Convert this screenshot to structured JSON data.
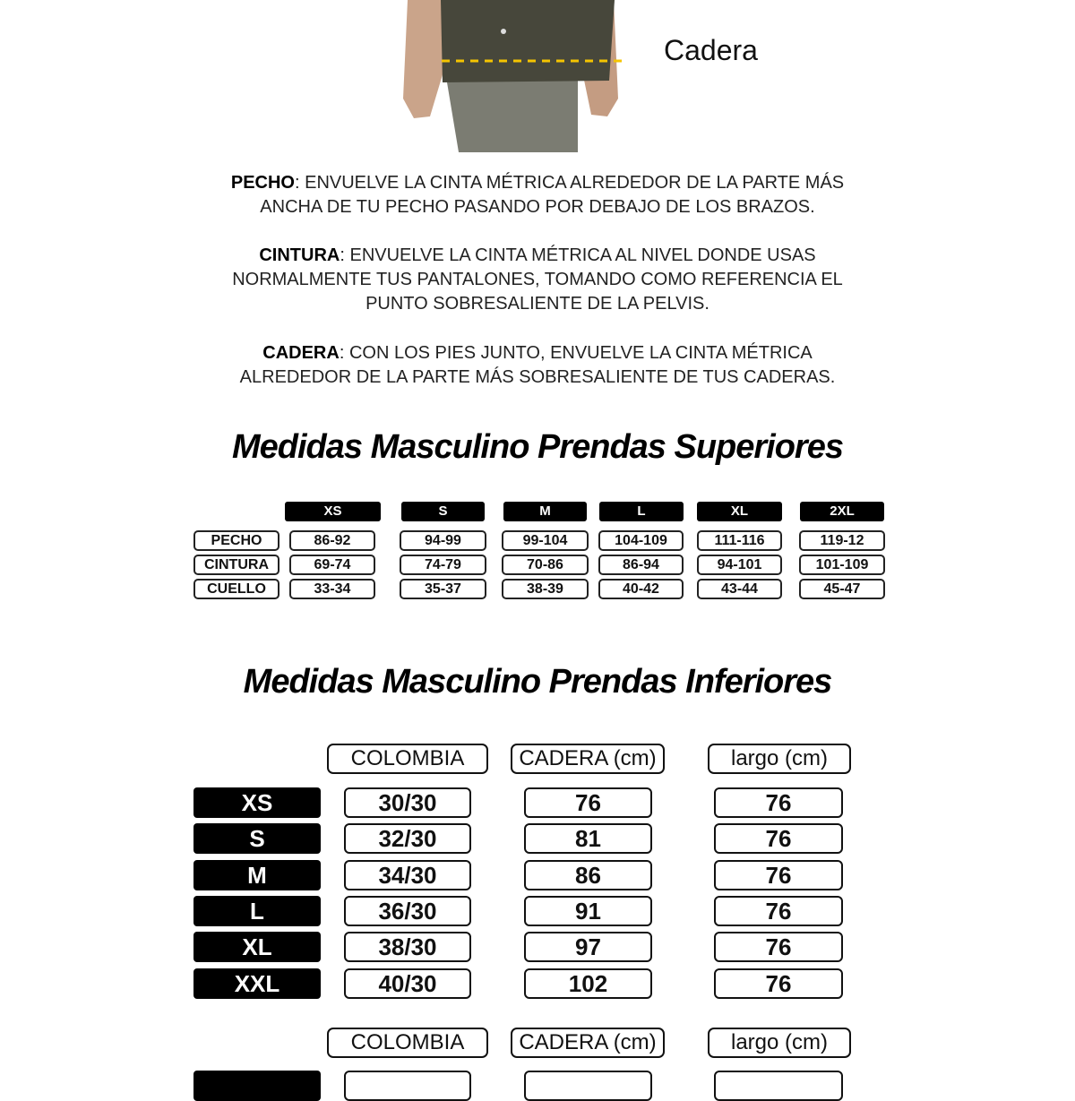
{
  "figure": {
    "hip_label": "Cadera",
    "line_color": "#f5c400"
  },
  "instructions": [
    {
      "term": "PECHO",
      "lines": [
        ": ENVUELVE LA CINTA MÉTRICA ALREDEDOR DE LA PARTE MÁS",
        "ANCHA DE TU PECHO PASANDO POR DEBAJO DE LOS BRAZOS."
      ]
    },
    {
      "term": "CINTURA",
      "lines": [
        ": ENVUELVE LA CINTA MÉTRICA AL NIVEL DONDE USAS",
        "NORMALMENTE TUS PANTALONES, TOMANDO COMO REFERENCIA EL",
        "PUNTO SOBRESALIENTE DE LA PELVIS."
      ]
    },
    {
      "term": "CADERA",
      "lines": [
        ": CON LOS PIES JUNTO, ENVUELVE LA CINTA MÉTRICA",
        "ALREDEDOR DE LA PARTE MÁS SOBRESALIENTE DE TUS CADERAS."
      ]
    }
  ],
  "upper": {
    "title": "Medidas Masculino Prendas Superiores",
    "sizes": [
      "XS",
      "S",
      "M",
      "L",
      "XL",
      "2XL"
    ],
    "rows": [
      {
        "label": "PECHO",
        "values": [
          "86-92",
          "94-99",
          "99-104",
          "104-109",
          "111-116",
          "119-12"
        ]
      },
      {
        "label": "CINTURA",
        "values": [
          "69-74",
          "74-79",
          "70-86",
          "86-94",
          "94-101",
          "101-109"
        ]
      },
      {
        "label": "CUELLO",
        "values": [
          "33-34",
          "35-37",
          "38-39",
          "40-42",
          "43-44",
          "45-47"
        ]
      }
    ]
  },
  "lower": {
    "title": "Medidas Masculino Prendas Inferiores",
    "headers": [
      "COLOMBIA",
      "CADERA (cm)",
      "largo (cm)"
    ],
    "rows": [
      {
        "size": "XS",
        "values": [
          "30/30",
          "76",
          "76"
        ]
      },
      {
        "size": "S",
        "values": [
          "32/30",
          "81",
          "76"
        ]
      },
      {
        "size": "M",
        "values": [
          "34/30",
          "86",
          "76"
        ]
      },
      {
        "size": "L",
        "values": [
          "36/30",
          "91",
          "76"
        ]
      },
      {
        "size": "XL",
        "values": [
          "38/30",
          "97",
          "76"
        ]
      },
      {
        "size": "XXL",
        "values": [
          "40/30",
          "102",
          "76"
        ]
      }
    ],
    "headers2": [
      "COLOMBIA",
      "CADERA (cm)",
      "largo (cm)"
    ]
  }
}
